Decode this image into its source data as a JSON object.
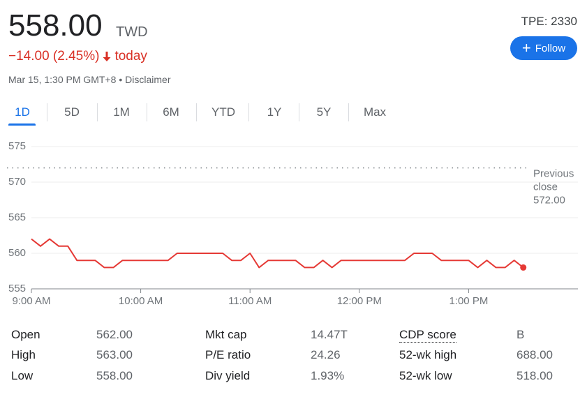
{
  "header": {
    "price": "558.00",
    "currency": "TWD",
    "change": "−14.00 (2.45%)",
    "change_period": "today",
    "timestamp": "Mar 15, 1:30 PM GMT+8",
    "disclaimer": "Disclaimer",
    "ticker": "TPE: 2330",
    "follow_button": "Follow"
  },
  "tabs": [
    "1D",
    "5D",
    "1M",
    "6M",
    "YTD",
    "1Y",
    "5Y",
    "Max"
  ],
  "chart_data": {
    "type": "line",
    "x": [
      "9:00 AM",
      "9:05 AM",
      "9:10 AM",
      "9:15 AM",
      "9:20 AM",
      "9:25 AM",
      "9:30 AM",
      "9:35 AM",
      "9:40 AM",
      "9:45 AM",
      "9:50 AM",
      "9:55 AM",
      "10:00 AM",
      "10:05 AM",
      "10:10 AM",
      "10:15 AM",
      "10:20 AM",
      "10:25 AM",
      "10:30 AM",
      "10:35 AM",
      "10:40 AM",
      "10:45 AM",
      "10:50 AM",
      "10:55 AM",
      "11:00 AM",
      "11:05 AM",
      "11:10 AM",
      "11:15 AM",
      "11:20 AM",
      "11:25 AM",
      "11:30 AM",
      "11:35 AM",
      "11:40 AM",
      "11:45 AM",
      "11:50 AM",
      "11:55 AM",
      "12:00 PM",
      "12:05 PM",
      "12:10 PM",
      "12:15 PM",
      "12:20 PM",
      "12:25 PM",
      "12:30 PM",
      "12:35 PM",
      "12:40 PM",
      "12:45 PM",
      "12:50 PM",
      "12:55 PM",
      "1:00 PM",
      "1:05 PM",
      "1:10 PM",
      "1:15 PM",
      "1:20 PM",
      "1:25 PM",
      "1:30 PM"
    ],
    "values": [
      562,
      561,
      562,
      561,
      561,
      559,
      559,
      559,
      558,
      558,
      559,
      559,
      559,
      559,
      559,
      559,
      560,
      560,
      560,
      560,
      560,
      560,
      559,
      559,
      560,
      558,
      559,
      559,
      559,
      559,
      558,
      558,
      559,
      558,
      559,
      559,
      559,
      559,
      559,
      559,
      559,
      559,
      560,
      560,
      560,
      559,
      559,
      559,
      559,
      558,
      559,
      558,
      558,
      559,
      558
    ],
    "color": "#e53935",
    "xlim": [
      "9:00 AM",
      "2:00 PM"
    ],
    "xticks": [
      "9:00 AM",
      "10:00 AM",
      "11:00 AM",
      "12:00 PM",
      "1:00 PM"
    ],
    "ylim": [
      555,
      575
    ],
    "yticks": [
      555,
      560,
      565,
      570,
      575
    ],
    "grid": true,
    "previous_close": {
      "label": "Previous close",
      "value": 572,
      "value_label": "572.00"
    }
  },
  "stats": [
    [
      {
        "label": "Open",
        "value": "562.00"
      },
      {
        "label": "High",
        "value": "563.00"
      },
      {
        "label": "Low",
        "value": "558.00"
      }
    ],
    [
      {
        "label": "Mkt cap",
        "value": "14.47T"
      },
      {
        "label": "P/E ratio",
        "value": "24.26"
      },
      {
        "label": "Div yield",
        "value": "1.93%"
      }
    ],
    [
      {
        "label": "CDP score",
        "value": "B"
      },
      {
        "label": "52-wk high",
        "value": "688.00"
      },
      {
        "label": "52-wk low",
        "value": "518.00"
      }
    ]
  ]
}
